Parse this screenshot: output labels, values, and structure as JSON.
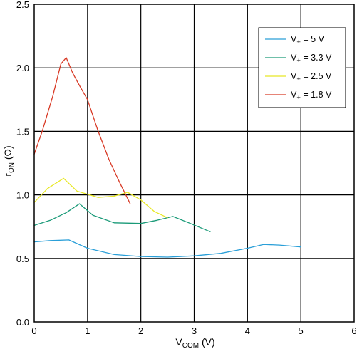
{
  "chart_data": {
    "type": "line",
    "xlabel": {
      "main": "V",
      "sub": "COM",
      "unit": " (V)"
    },
    "ylabel": {
      "main": "r",
      "sub": "ON",
      "unit": " (Ω)"
    },
    "xlim": [
      0,
      6
    ],
    "ylim": [
      0,
      2.5
    ],
    "x_ticks": [
      "0",
      "1",
      "2",
      "3",
      "4",
      "5",
      "6"
    ],
    "y_ticks": [
      "0.0",
      "0.5",
      "1.0",
      "1.5",
      "2.0",
      "2.5"
    ],
    "grid": true,
    "legend_position": "top-right",
    "series": [
      {
        "label": {
          "main": "V",
          "sub": "+",
          "rest": " = 5 V"
        },
        "color": "#2a9fd8",
        "x": [
          0,
          0.3,
          0.65,
          1.0,
          1.5,
          2.0,
          2.5,
          3.0,
          3.5,
          4.0,
          4.3,
          4.6,
          5.0
        ],
        "y": [
          0.63,
          0.64,
          0.645,
          0.58,
          0.53,
          0.515,
          0.51,
          0.52,
          0.54,
          0.58,
          0.61,
          0.605,
          0.59
        ]
      },
      {
        "label": {
          "main": "V",
          "sub": "+",
          "rest": " = 3.3 V"
        },
        "color": "#1a9a78",
        "x": [
          0,
          0.3,
          0.6,
          0.85,
          1.1,
          1.5,
          2.0,
          2.3,
          2.6,
          2.9,
          3.3
        ],
        "y": [
          0.76,
          0.8,
          0.86,
          0.93,
          0.84,
          0.78,
          0.775,
          0.8,
          0.83,
          0.78,
          0.71
        ]
      },
      {
        "label": {
          "main": "V",
          "sub": "+",
          "rest": " = 2.5 V"
        },
        "color": "#e8e826",
        "x": [
          0,
          0.25,
          0.55,
          0.8,
          1.2,
          1.5,
          1.75,
          2.0,
          2.25,
          2.5
        ],
        "y": [
          0.94,
          1.05,
          1.13,
          1.03,
          0.98,
          0.99,
          1.02,
          0.96,
          0.87,
          0.82
        ]
      },
      {
        "label": {
          "main": "V",
          "sub": "+",
          "rest": " = 1.8 V"
        },
        "color": "#d83a26",
        "x": [
          0,
          0.15,
          0.35,
          0.5,
          0.6,
          0.72,
          0.85,
          1.0,
          1.2,
          1.4,
          1.6,
          1.8
        ],
        "y": [
          1.32,
          1.5,
          1.78,
          2.03,
          2.08,
          1.96,
          1.86,
          1.75,
          1.5,
          1.28,
          1.1,
          0.93
        ]
      }
    ]
  }
}
